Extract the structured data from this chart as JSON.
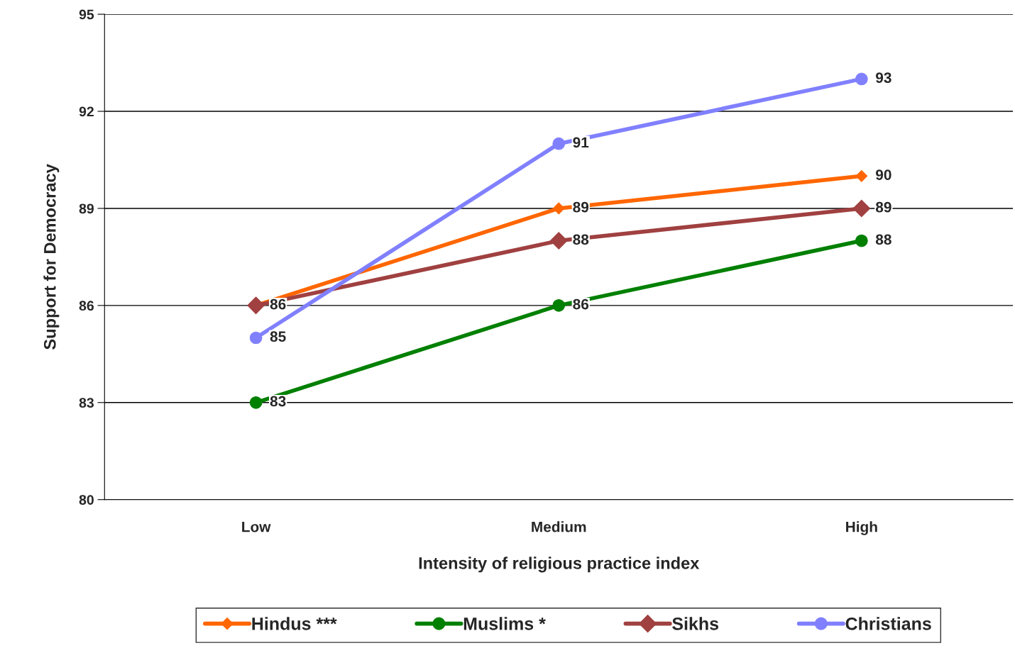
{
  "chart_data": {
    "type": "line",
    "xlabel": "Intensity of religious practice index",
    "ylabel": "Support for Democracy",
    "categories": [
      "Low",
      "Medium",
      "High"
    ],
    "series": [
      {
        "name": "Hindus ***",
        "color": "#ff6600",
        "values": [
          86,
          89,
          90
        ],
        "marker": "diamond",
        "value_labels": [
          null,
          "89",
          "90"
        ]
      },
      {
        "name": "Muslims *",
        "color": "#008000",
        "values": [
          83,
          86,
          88
        ],
        "marker": "circle",
        "value_labels": [
          "83",
          "86",
          "88"
        ]
      },
      {
        "name": "Sikhs",
        "color": "#a04040",
        "values": [
          86,
          88,
          89
        ],
        "marker": "diamond",
        "value_labels": [
          "86",
          "88",
          "89"
        ]
      },
      {
        "name": "Christians",
        "color": "#8080ff",
        "values": [
          85,
          91,
          93
        ],
        "marker": "circle",
        "value_labels": [
          "85",
          "91",
          "93"
        ]
      }
    ],
    "ylim": [
      80,
      95
    ],
    "yticks": [
      80,
      83,
      86,
      89,
      92,
      95
    ],
    "grid": "y",
    "legend": "bottom",
    "line_style": "solid"
  }
}
